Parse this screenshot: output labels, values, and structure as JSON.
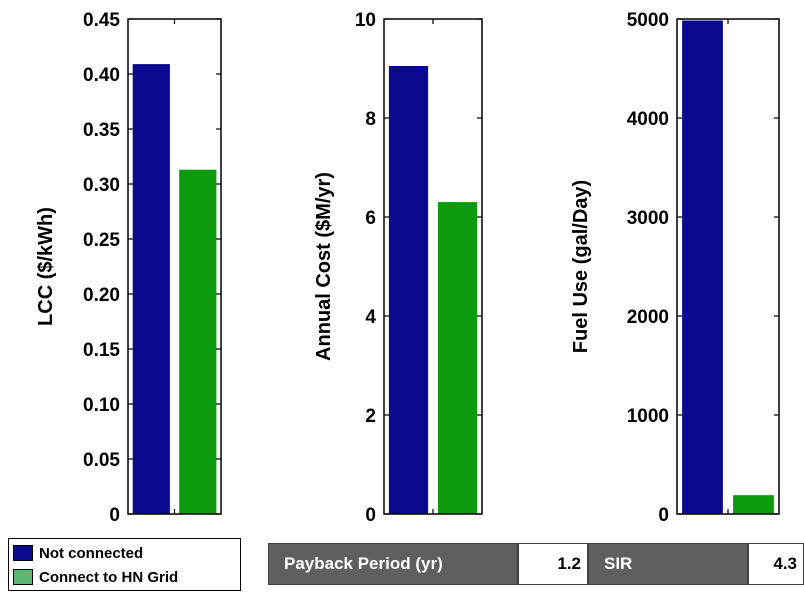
{
  "colors": {
    "not_connected": "#0a0a8e",
    "connect_grid": "#0b9b0b",
    "legend_connect_swatch": "#5cb870",
    "metric_label_bg": "#5f5f5f"
  },
  "chart_data": [
    {
      "type": "bar",
      "ylabel": "LCC ($/kWh)",
      "ylim": [
        0,
        0.45
      ],
      "yticks": [
        "0",
        "0.05",
        "0.10",
        "0.15",
        "0.20",
        "0.25",
        "0.30",
        "0.35",
        "0.40",
        "0.45"
      ],
      "ytick_values": [
        0,
        0.05,
        0.1,
        0.15,
        0.2,
        0.25,
        0.3,
        0.35,
        0.4,
        0.45
      ],
      "series": [
        {
          "name": "Not connected",
          "values": [
            0.409
          ]
        },
        {
          "name": "Connect to HN Grid",
          "values": [
            0.313
          ]
        }
      ]
    },
    {
      "type": "bar",
      "ylabel": "Annual Cost ($M/yr)",
      "ylim": [
        0,
        10
      ],
      "yticks": [
        "0",
        "2",
        "4",
        "6",
        "8",
        "10"
      ],
      "ytick_values": [
        0,
        2,
        4,
        6,
        8,
        10
      ],
      "series": [
        {
          "name": "Not connected",
          "values": [
            9.05
          ]
        },
        {
          "name": "Connect to HN Grid",
          "values": [
            6.3
          ]
        }
      ]
    },
    {
      "type": "bar",
      "ylabel": "Fuel Use (gal/Day)",
      "ylim": [
        0,
        5000
      ],
      "yticks": [
        "0",
        "1000",
        "2000",
        "3000",
        "4000",
        "5000"
      ],
      "ytick_values": [
        0,
        1000,
        2000,
        3000,
        4000,
        5000
      ],
      "series": [
        {
          "name": "Not connected",
          "values": [
            4985
          ]
        },
        {
          "name": "Connect to HN Grid",
          "values": [
            190
          ]
        }
      ]
    }
  ],
  "legend": {
    "items": [
      {
        "label": "Not connected"
      },
      {
        "label": "Connect to HN Grid"
      }
    ]
  },
  "metrics": {
    "payback_label": "Payback Period (yr)",
    "payback_value": "1.2",
    "sir_label": "SIR",
    "sir_value": "4.3"
  }
}
